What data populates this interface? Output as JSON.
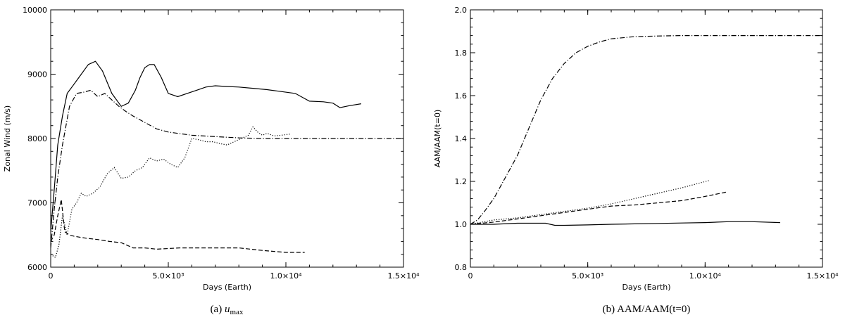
{
  "chart_data": [
    {
      "type": "line",
      "caption_prefix": "(a)",
      "caption_var": "u",
      "caption_sub": "max",
      "xlabel": "Days (Earth)",
      "ylabel": "Zonal Wind (m/s)",
      "xlim": [
        0,
        15000
      ],
      "ylim": [
        6000,
        10000
      ],
      "xticks": [
        0,
        5000,
        10000,
        15000
      ],
      "xtick_labels": [
        "0",
        "5.0×10³",
        "1.0×10⁴",
        "1.5×10⁴"
      ],
      "yticks": [
        6000,
        7000,
        8000,
        9000,
        10000
      ],
      "ytick_labels": [
        "6000",
        "7000",
        "8000",
        "9000",
        "10000"
      ],
      "series": [
        {
          "style": "solid",
          "x": [
            0,
            150,
            300,
            500,
            700,
            900,
            1200,
            1600,
            1900,
            2200,
            2600,
            3000,
            3300,
            3600,
            3800,
            4000,
            4200,
            4400,
            4700,
            5000,
            5400,
            5800,
            6200,
            6600,
            7000,
            7400,
            8000,
            8600,
            9200,
            9800,
            10400,
            11000,
            11600,
            12000,
            12300,
            12700,
            13200
          ],
          "y": [
            6550,
            7200,
            7900,
            8350,
            8700,
            8800,
            8950,
            9150,
            9200,
            9050,
            8700,
            8500,
            8550,
            8750,
            8950,
            9100,
            9150,
            9150,
            8950,
            8700,
            8650,
            8700,
            8750,
            8800,
            8820,
            8810,
            8800,
            8780,
            8760,
            8730,
            8700,
            8580,
            8570,
            8550,
            8480,
            8510,
            8540
          ]
        },
        {
          "style": "dashdot",
          "x": [
            0,
            150,
            300,
            500,
            800,
            1100,
            1400,
            1700,
            2000,
            2300,
            2600,
            2900,
            3200,
            3500,
            4000,
            4500,
            5000,
            6000,
            7000,
            8000,
            9000,
            10000,
            11000,
            12000,
            13000,
            14000,
            15000
          ],
          "y": [
            6300,
            6900,
            7400,
            7900,
            8500,
            8700,
            8720,
            8750,
            8650,
            8700,
            8600,
            8500,
            8420,
            8350,
            8250,
            8150,
            8100,
            8050,
            8030,
            8010,
            8000,
            8000,
            8000,
            8000,
            8000,
            8000,
            8000
          ]
        },
        {
          "style": "dotted",
          "x": [
            0,
            200,
            350,
            500,
            700,
            900,
            1100,
            1300,
            1500,
            1800,
            2100,
            2400,
            2700,
            3000,
            3300,
            3600,
            3900,
            4200,
            4500,
            4800,
            5100,
            5400,
            5700,
            6000,
            6300,
            6600,
            6900,
            7200,
            7500,
            7800,
            8100,
            8400,
            8600,
            8800,
            9000,
            9200,
            9500,
            9800,
            10200
          ],
          "y": [
            6200,
            6150,
            6350,
            6800,
            6500,
            6900,
            7000,
            7150,
            7100,
            7150,
            7250,
            7450,
            7550,
            7380,
            7400,
            7500,
            7550,
            7700,
            7650,
            7680,
            7600,
            7550,
            7700,
            8000,
            7980,
            7950,
            7950,
            7920,
            7900,
            7950,
            8000,
            8050,
            8180,
            8100,
            8050,
            8080,
            8040,
            8050,
            8070
          ]
        },
        {
          "style": "dashed",
          "x": [
            0,
            150,
            300,
            450,
            600,
            800,
            1000,
            1500,
            2000,
            2500,
            3000,
            3500,
            4000,
            4500,
            5000,
            5500,
            6000,
            7000,
            8000,
            9000,
            10000,
            10800
          ],
          "y": [
            6400,
            6500,
            6800,
            7050,
            6550,
            6500,
            6480,
            6450,
            6430,
            6400,
            6380,
            6300,
            6300,
            6280,
            6290,
            6300,
            6300,
            6300,
            6300,
            6260,
            6230,
            6230
          ]
        }
      ]
    },
    {
      "type": "line",
      "caption_prefix": "(b)",
      "caption_text": "AAM/AAM(t=0)",
      "xlabel": "Days (Earth)",
      "ylabel": "AAM/AAM(t=0)",
      "xlim": [
        0,
        15000
      ],
      "ylim": [
        0.8,
        2.0
      ],
      "xticks": [
        0,
        5000,
        10000,
        15000
      ],
      "xtick_labels": [
        "0",
        "5.0×10³",
        "1.0×10⁴",
        "1.5×10⁴"
      ],
      "yticks": [
        0.8,
        1.0,
        1.2,
        1.4,
        1.6,
        1.8,
        2.0
      ],
      "ytick_labels": [
        "0.8",
        "1.0",
        "1.2",
        "1.4",
        "1.6",
        "1.8",
        "2.0"
      ],
      "series": [
        {
          "style": "dashdot",
          "x": [
            0,
            300,
            600,
            1000,
            1500,
            2000,
            2500,
            3000,
            3500,
            4000,
            4500,
            5000,
            5500,
            6000,
            7000,
            8000,
            9000,
            10000,
            12000,
            15000
          ],
          "y": [
            1.0,
            1.02,
            1.06,
            1.12,
            1.22,
            1.32,
            1.45,
            1.58,
            1.68,
            1.75,
            1.8,
            1.83,
            1.85,
            1.865,
            1.875,
            1.878,
            1.88,
            1.88,
            1.88,
            1.88
          ]
        },
        {
          "style": "dotted",
          "x": [
            0,
            1000,
            2000,
            3000,
            4000,
            5000,
            6000,
            7000,
            8000,
            9000,
            10200
          ],
          "y": [
            1.0,
            1.02,
            1.03,
            1.045,
            1.06,
            1.075,
            1.095,
            1.12,
            1.145,
            1.17,
            1.205
          ]
        },
        {
          "style": "dashed",
          "x": [
            0,
            1000,
            2000,
            3000,
            4000,
            5000,
            6000,
            7000,
            8000,
            9000,
            10000,
            10900
          ],
          "y": [
            1.0,
            1.01,
            1.025,
            1.04,
            1.055,
            1.07,
            1.085,
            1.09,
            1.1,
            1.11,
            1.13,
            1.15
          ]
        },
        {
          "style": "solid",
          "x": [
            0,
            1000,
            2000,
            3200,
            3600,
            4000,
            5000,
            6000,
            7000,
            8000,
            9000,
            10000,
            11000,
            12000,
            13200
          ],
          "y": [
            1.0,
            1.0,
            1.005,
            1.005,
            0.995,
            0.995,
            0.997,
            1.0,
            1.002,
            1.004,
            1.006,
            1.008,
            1.012,
            1.012,
            1.008
          ]
        }
      ]
    }
  ]
}
